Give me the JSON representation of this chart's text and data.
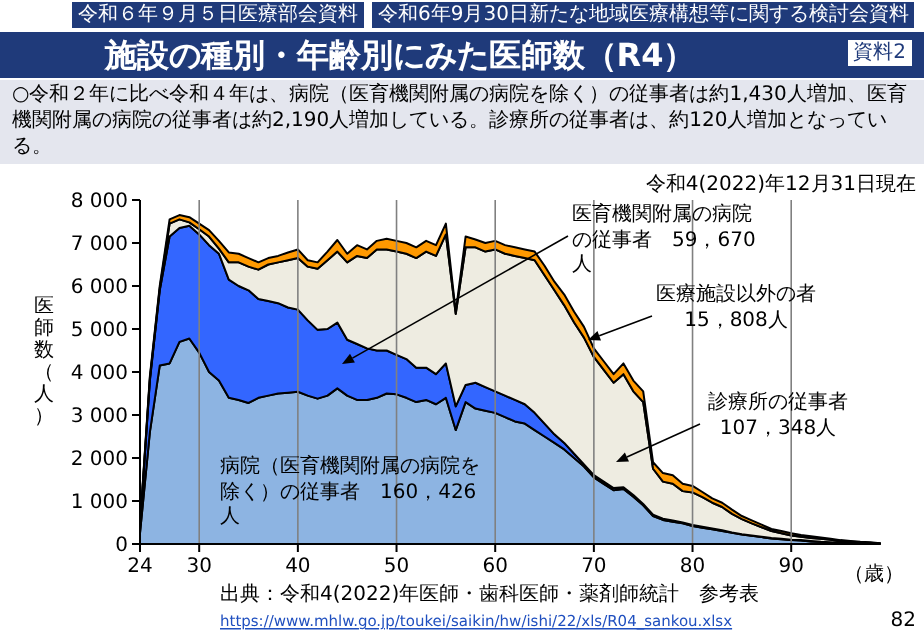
{
  "chart_data": {
    "type": "area",
    "stacked": true,
    "title": "施設の種別・年齢別にみた医師数（R4）",
    "subtitle": "○令和２年に比べ令和４年は、病院（医育機関附属の病院を除く）の従事者は約1,430人増加、医育機関附属の病院の従事者は約2,190人増加している。診療所の従事者は、約120人増加となっている。",
    "xlabel": "（歳）",
    "ylabel": "医師数（人）",
    "x": [
      24,
      25,
      26,
      27,
      28,
      29,
      30,
      31,
      32,
      33,
      34,
      35,
      36,
      37,
      38,
      39,
      40,
      41,
      42,
      43,
      44,
      45,
      46,
      47,
      48,
      49,
      50,
      51,
      52,
      53,
      54,
      55,
      56,
      57,
      58,
      59,
      60,
      61,
      62,
      63,
      64,
      65,
      66,
      67,
      68,
      69,
      70,
      71,
      72,
      73,
      74,
      75,
      76,
      77,
      78,
      79,
      80,
      81,
      82,
      83,
      84,
      85,
      86,
      87,
      88,
      89,
      90,
      91,
      92,
      93,
      94,
      95,
      96,
      97,
      98,
      99
    ],
    "series": [
      {
        "color": "#8db4e2",
        "values": [
          250,
          2600,
          4150,
          4200,
          4700,
          4780,
          4450,
          4000,
          3800,
          3400,
          3350,
          3280,
          3400,
          3450,
          3500,
          3520,
          3540,
          3450,
          3380,
          3450,
          3620,
          3450,
          3350,
          3350,
          3400,
          3500,
          3480,
          3400,
          3300,
          3350,
          3250,
          3400,
          2650,
          3300,
          3150,
          3100,
          3050,
          2950,
          2850,
          2800,
          2650,
          2500,
          2350,
          2200,
          2000,
          1800,
          1550,
          1400,
          1250,
          1280,
          1100,
          900,
          650,
          560,
          520,
          480,
          420,
          380,
          340,
          300,
          260,
          220,
          190,
          160,
          130,
          110,
          90,
          80,
          60,
          50,
          40,
          30,
          20,
          20,
          10,
          10
        ]
      },
      {
        "color": "#3366ff",
        "values": [
          150,
          1200,
          1750,
          2950,
          2650,
          2620,
          2750,
          2950,
          2950,
          2750,
          2650,
          2620,
          2300,
          2200,
          2100,
          1980,
          1910,
          1750,
          1600,
          1550,
          1530,
          1300,
          1300,
          1200,
          1100,
          1000,
          920,
          900,
          800,
          750,
          700,
          800,
          550,
          400,
          600,
          550,
          500,
          500,
          500,
          450,
          400,
          300,
          200,
          150,
          100,
          50,
          50,
          50,
          50,
          40,
          40,
          30,
          30,
          30,
          30,
          20,
          20,
          20,
          20,
          20,
          10,
          10,
          10,
          10,
          10,
          10,
          10,
          10,
          10,
          0,
          0,
          0,
          0,
          0,
          0,
          0
        ]
      },
      {
        "color": "#eeece1",
        "values": [
          20,
          50,
          50,
          300,
          200,
          80,
          120,
          200,
          120,
          400,
          550,
          550,
          680,
          850,
          950,
          1100,
          1200,
          1250,
          1420,
          1600,
          1650,
          1800,
          2050,
          2100,
          2350,
          2350,
          2400,
          2450,
          2550,
          2700,
          2750,
          3000,
          2150,
          3200,
          3150,
          3150,
          3300,
          3300,
          3350,
          3400,
          3550,
          3450,
          3350,
          3200,
          3050,
          2950,
          2750,
          2600,
          2450,
          2630,
          2410,
          2370,
          1070,
          860,
          850,
          730,
          760,
          690,
          600,
          540,
          430,
          350,
          280,
          220,
          160,
          130,
          100,
          80,
          70,
          70,
          60,
          40,
          40,
          20,
          20,
          0
        ]
      },
      {
        "color": "#ff9900",
        "values": [
          10,
          50,
          50,
          100,
          100,
          120,
          130,
          150,
          180,
          230,
          200,
          200,
          170,
          150,
          150,
          180,
          200,
          150,
          150,
          200,
          270,
          200,
          250,
          200,
          200,
          250,
          250,
          250,
          250,
          250,
          250,
          250,
          50,
          250,
          180,
          200,
          200,
          200,
          200,
          200,
          200,
          220,
          200,
          250,
          250,
          250,
          200,
          200,
          200,
          250,
          250,
          250,
          150,
          200,
          200,
          170,
          150,
          120,
          100,
          100,
          100,
          70,
          70,
          60,
          50,
          50,
          50,
          40,
          40,
          30,
          20,
          20,
          10,
          10,
          10,
          10
        ]
      }
    ],
    "xlim": [
      24,
      99
    ],
    "xticks": [
      24,
      30,
      40,
      50,
      60,
      70,
      80,
      90
    ],
    "ylim": [
      0,
      8000
    ],
    "yticks": [
      0,
      {
        "value": 1000,
        "label": "1 000"
      },
      {
        "value": 2000,
        "label": "2 000"
      },
      {
        "value": 3000,
        "label": "3 000"
      },
      {
        "value": 4000,
        "label": "4 000"
      },
      {
        "value": 5000,
        "label": "5 000"
      },
      {
        "value": 6000,
        "label": "6 000"
      },
      {
        "value": 7000,
        "label": "7 000"
      },
      {
        "value": 8000,
        "label": "8 000"
      }
    ],
    "grid": "x",
    "annotations": [
      "令和６年９月５日医療部会資料",
      "令和6年9月30日新たな地域医療構想等に関する検討会資料",
      "資料2",
      "令和4(2022)年12月31日現在",
      "医育機関附属の病院の従事者　59，670人",
      "医療施設以外の者15，808人",
      "診療所の従事者107，348人",
      "病院（医育機関附属の病院を除く）の従事者　160，426人",
      "出典：令和4(2022)年医師・歯科医師・薬剤師統計　参考表",
      "https://www.mhlw.go.jp/toukei/saikin/hw/ishi/22/xls/R04_sankou.xlsx",
      "82"
    ]
  }
}
